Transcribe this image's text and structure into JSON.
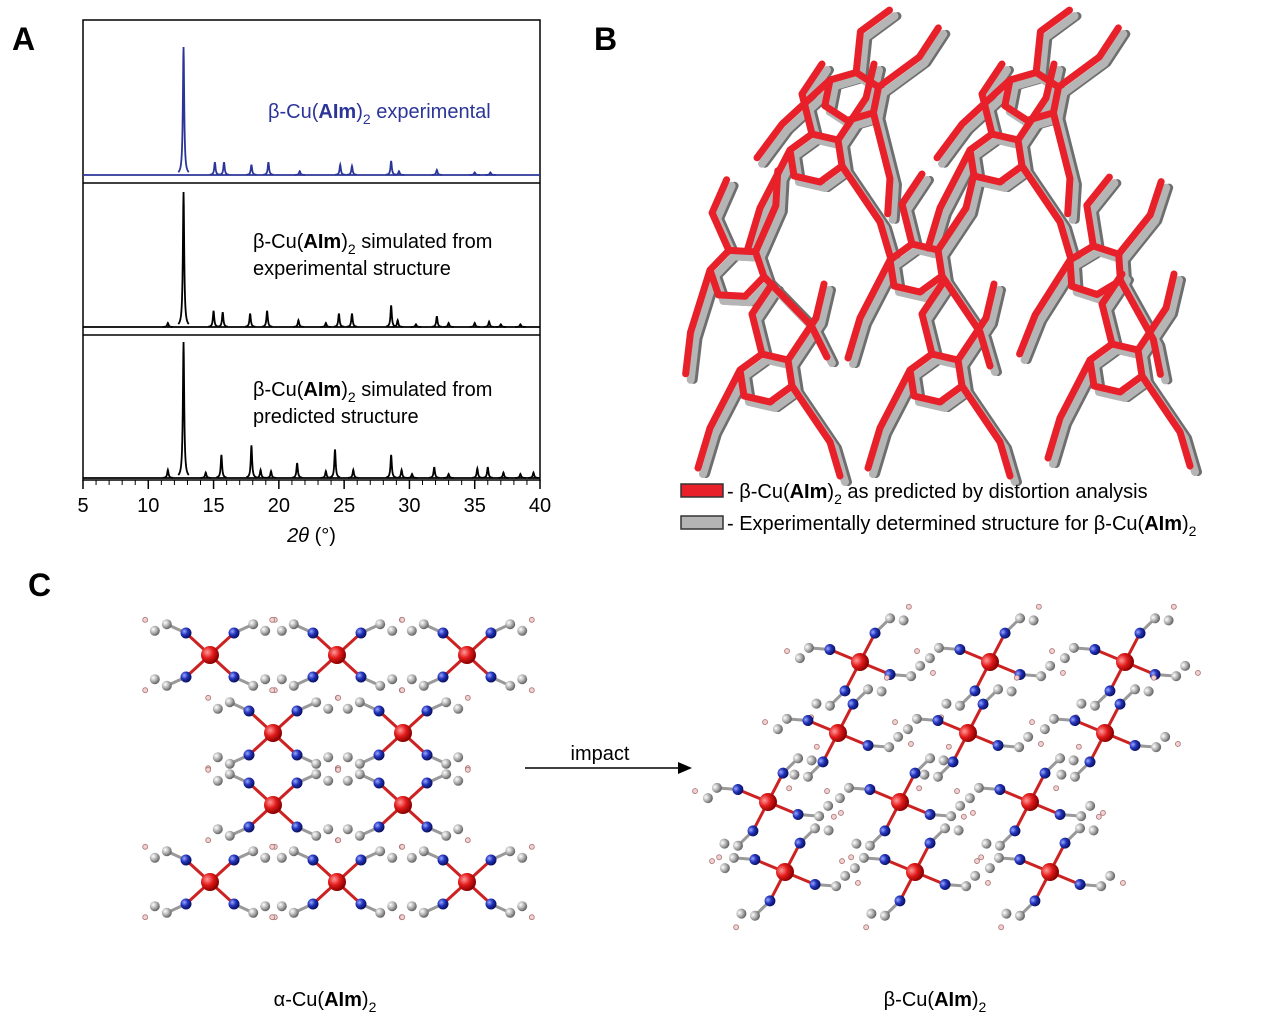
{
  "panel_labels": [
    "A",
    "B",
    "C"
  ],
  "chart_data": {
    "type": "line",
    "xlabel": [
      {
        "text": "2θ",
        "style": "italic"
      },
      {
        "text": " (°)"
      }
    ],
    "xlim": [
      5,
      40
    ],
    "xticks": [
      5,
      10,
      15,
      20,
      25,
      30,
      35,
      40
    ],
    "series": [
      {
        "color": "#2b3598",
        "label_lines": [
          [
            {
              "text": "β-Cu("
            },
            {
              "text": "AIm",
              "style": "bold"
            },
            {
              "text": ")"
            },
            {
              "text": "2",
              "style": "sub"
            },
            {
              "text": " experimental"
            }
          ]
        ],
        "x": [
          12.7,
          15.1,
          15.8,
          17.9,
          19.2,
          21.6,
          24.7,
          25.6,
          28.6,
          29.2,
          32.1,
          35,
          36.2
        ],
        "values": [
          100,
          10,
          10,
          8,
          10,
          3,
          8,
          7,
          11,
          3,
          4,
          2,
          2
        ]
      },
      {
        "color": "#000000",
        "label_lines": [
          [
            {
              "text": "β-Cu("
            },
            {
              "text": "AIm",
              "style": "bold"
            },
            {
              "text": ")"
            },
            {
              "text": "2",
              "style": "sub"
            },
            {
              "text": " simulated from"
            }
          ],
          [
            {
              "text": "experimental structure"
            }
          ]
        ],
        "x": [
          11.5,
          12.7,
          15.0,
          15.7,
          17.8,
          19.1,
          21.5,
          23.6,
          24.6,
          25.6,
          28.6,
          29.1,
          30.5,
          32.1,
          33,
          35,
          36.1,
          37,
          38.5
        ],
        "values": [
          3,
          100,
          12,
          11,
          10,
          12,
          5,
          3,
          10,
          10,
          16,
          5,
          2,
          8,
          3,
          3,
          4,
          2,
          2
        ]
      },
      {
        "color": "#000000",
        "label_lines": [
          [
            {
              "text": "β-Cu("
            },
            {
              "text": "AIm",
              "style": "bold"
            },
            {
              "text": ")"
            },
            {
              "text": "2",
              "style": "sub"
            },
            {
              "text": " simulated from"
            }
          ],
          [
            {
              "text": "predicted structure"
            }
          ]
        ],
        "x": [
          11.5,
          12.7,
          14.4,
          15.6,
          17.9,
          18.6,
          19.4,
          21.4,
          23.6,
          24.3,
          25.7,
          28.6,
          29.4,
          30.2,
          31.9,
          33,
          35.2,
          36,
          37.2,
          38.5,
          39.5
        ],
        "values": [
          6,
          100,
          4,
          17,
          24,
          6,
          5,
          11,
          5,
          21,
          6,
          17,
          6,
          3,
          8,
          3,
          7,
          8,
          4,
          3,
          4
        ]
      }
    ]
  },
  "legend": [
    {
      "color": "#e8202a",
      "lines": [
        {
          "text": "- β-Cu("
        },
        {
          "text": "AIm",
          "style": "bold"
        },
        {
          "text": ")"
        },
        {
          "text": "2",
          "style": "sub"
        },
        {
          "text": " as predicted by distortion analysis"
        }
      ]
    },
    {
      "color": "#b4b4b4",
      "lines": [
        {
          "text": "- Experimentally determined structure for β-Cu("
        },
        {
          "text": "AIm",
          "style": "bold"
        },
        {
          "text": ")"
        },
        {
          "text": "2",
          "style": "sub"
        }
      ]
    }
  ],
  "arrow_label": "impact",
  "structure_labels": [
    [
      {
        "text": "α-Cu("
      },
      {
        "text": "AIm",
        "style": "bold"
      },
      {
        "text": ")"
      },
      {
        "text": "2",
        "style": "sub"
      }
    ],
    [
      {
        "text": "β-Cu("
      },
      {
        "text": "AIm",
        "style": "bold"
      },
      {
        "text": ")"
      },
      {
        "text": "2",
        "style": "sub"
      }
    ]
  ]
}
